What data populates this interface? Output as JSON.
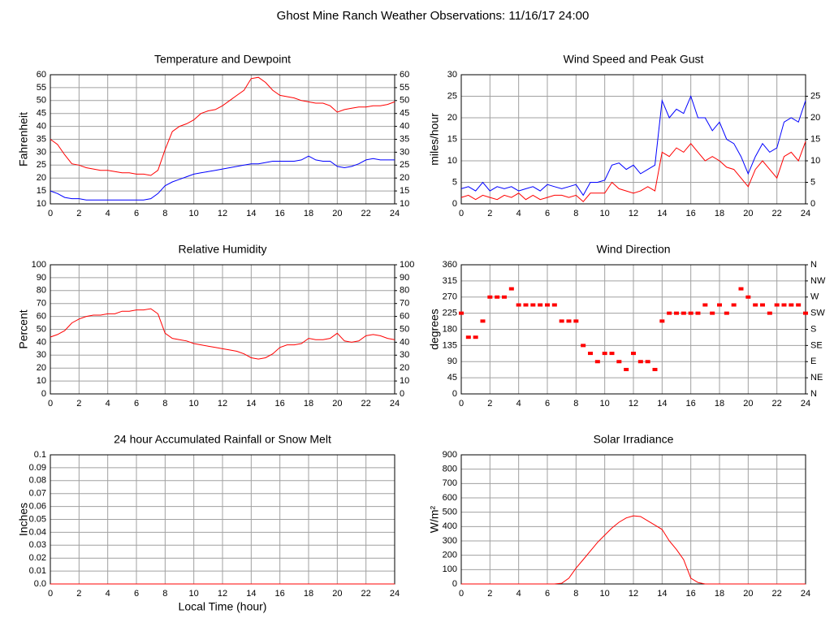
{
  "title": "Ghost Mine Ranch Weather Observations: 11/16/17 24:00",
  "chart_data": [
    {
      "type": "line",
      "title": "Temperature and Dewpoint",
      "ylabel": "Fahrenheit",
      "grid": true,
      "xlim": [
        0,
        24
      ],
      "xticks": [
        0,
        2,
        4,
        6,
        8,
        10,
        12,
        14,
        16,
        18,
        20,
        22,
        24
      ],
      "ylim": [
        10,
        60
      ],
      "yticks": [
        10,
        15,
        20,
        25,
        30,
        35,
        40,
        45,
        50,
        55,
        60
      ],
      "y2lim": [
        10,
        60
      ],
      "y2ticks": [
        10,
        15,
        20,
        25,
        30,
        35,
        40,
        45,
        50,
        55,
        60
      ],
      "x": [
        0,
        0.5,
        1,
        1.5,
        2,
        2.5,
        3,
        3.5,
        4,
        4.5,
        5,
        5.5,
        6,
        6.5,
        7,
        7.5,
        8,
        8.5,
        9,
        9.5,
        10,
        10.5,
        11,
        11.5,
        12,
        12.5,
        13,
        13.5,
        14,
        14.5,
        15,
        15.5,
        16,
        16.5,
        17,
        17.5,
        18,
        18.5,
        19,
        19.5,
        20,
        20.5,
        21,
        21.5,
        22,
        22.5,
        23,
        23.5,
        24
      ],
      "series": [
        {
          "color": "#ff0000",
          "values": [
            35,
            33,
            29,
            25.5,
            25,
            24,
            23.5,
            23,
            23,
            22.5,
            22,
            22,
            21.5,
            21.5,
            21,
            23,
            31,
            38,
            40,
            41,
            42.5,
            45,
            46,
            46.5,
            48,
            50,
            52,
            54,
            58.5,
            59,
            57,
            54,
            52,
            51.5,
            51,
            50,
            49.5,
            49,
            49,
            48,
            45.5,
            46.5,
            47,
            47.5,
            47.5,
            48,
            48,
            48.5,
            49.5
          ]
        },
        {
          "color": "#0000ff",
          "values": [
            15,
            14,
            12.5,
            12,
            12,
            11.5,
            11.5,
            11.5,
            11.5,
            11.5,
            11.5,
            11.5,
            11.5,
            11.5,
            12,
            14,
            17,
            18.5,
            19.5,
            20.5,
            21.5,
            22,
            22.5,
            23,
            23.5,
            24,
            24.5,
            25,
            25.5,
            25.5,
            26,
            26.5,
            26.5,
            26.5,
            26.5,
            27,
            28.5,
            27,
            26.5,
            26.5,
            24.5,
            24,
            24.5,
            25.5,
            27,
            27.5,
            27,
            27,
            27
          ]
        }
      ]
    },
    {
      "type": "line",
      "title": "Wind Speed and Peak Gust",
      "ylabel": "miles/hour",
      "grid": true,
      "xlim": [
        0,
        24
      ],
      "xticks": [
        0,
        2,
        4,
        6,
        8,
        10,
        12,
        14,
        16,
        18,
        20,
        22,
        24
      ],
      "ylim": [
        0,
        30
      ],
      "yticks": [
        0,
        5,
        10,
        15,
        20,
        25,
        30
      ],
      "y2lim": [
        0,
        30
      ],
      "y2ticks": [
        0,
        5,
        10,
        15,
        20,
        25
      ],
      "x": [
        0,
        0.5,
        1,
        1.5,
        2,
        2.5,
        3,
        3.5,
        4,
        4.5,
        5,
        5.5,
        6,
        6.5,
        7,
        7.5,
        8,
        8.5,
        9,
        9.5,
        10,
        10.5,
        11,
        11.5,
        12,
        12.5,
        13,
        13.5,
        14,
        14.5,
        15,
        15.5,
        16,
        16.5,
        17,
        17.5,
        18,
        18.5,
        19,
        19.5,
        20,
        20.5,
        21,
        21.5,
        22,
        22.5,
        23,
        23.5,
        24
      ],
      "series": [
        {
          "color": "#0000ff",
          "values": [
            3.5,
            4,
            3,
            5,
            3,
            4,
            3.5,
            4,
            3,
            3.5,
            4,
            3,
            4.5,
            4,
            3.5,
            4,
            4.5,
            2,
            5,
            5,
            5.5,
            9,
            9.5,
            8,
            9,
            7,
            8,
            9,
            24,
            20,
            22,
            21,
            25,
            20,
            20,
            17,
            19,
            15,
            14,
            11,
            7,
            11,
            14,
            12,
            13,
            19,
            20,
            19,
            24
          ]
        },
        {
          "color": "#ff0000",
          "values": [
            1.5,
            2,
            1,
            2,
            1.5,
            1,
            2,
            1.5,
            2.5,
            1,
            2,
            1,
            1.5,
            2,
            2,
            1.5,
            2,
            0.5,
            2.5,
            2.5,
            2.5,
            5,
            3.5,
            3,
            2.5,
            3,
            4,
            3,
            12,
            11,
            13,
            12,
            14,
            12,
            10,
            11,
            10,
            8.5,
            8,
            6,
            4,
            8,
            10,
            8,
            6,
            11,
            12,
            10,
            14.5
          ]
        }
      ]
    },
    {
      "type": "line",
      "title": "Relative Humidity",
      "ylabel": "Percent",
      "grid": true,
      "xlim": [
        0,
        24
      ],
      "xticks": [
        0,
        2,
        4,
        6,
        8,
        10,
        12,
        14,
        16,
        18,
        20,
        22,
        24
      ],
      "ylim": [
        0,
        100
      ],
      "yticks": [
        0,
        10,
        20,
        30,
        40,
        50,
        60,
        70,
        80,
        90,
        100
      ],
      "y2lim": [
        0,
        100
      ],
      "y2ticks": [
        0,
        10,
        20,
        30,
        40,
        50,
        60,
        70,
        80,
        90,
        100
      ],
      "x": [
        0,
        0.5,
        1,
        1.5,
        2,
        2.5,
        3,
        3.5,
        4,
        4.5,
        5,
        5.5,
        6,
        6.5,
        7,
        7.5,
        8,
        8.5,
        9,
        9.5,
        10,
        10.5,
        11,
        11.5,
        12,
        12.5,
        13,
        13.5,
        14,
        14.5,
        15,
        15.5,
        16,
        16.5,
        17,
        17.5,
        18,
        18.5,
        19,
        19.5,
        20,
        20.5,
        21,
        21.5,
        22,
        22.5,
        23,
        23.5,
        24
      ],
      "series": [
        {
          "color": "#ff0000",
          "values": [
            44,
            46,
            49,
            55,
            58,
            60,
            61,
            61,
            62,
            62,
            64,
            64,
            65,
            65,
            66,
            62,
            47,
            43,
            42,
            41,
            39,
            38,
            37,
            36,
            35,
            34,
            33,
            31,
            28,
            27,
            28,
            31,
            36,
            38,
            38,
            39,
            43,
            42,
            42,
            43,
            47,
            41,
            40,
            41,
            45,
            46,
            45,
            43,
            42
          ]
        }
      ]
    },
    {
      "type": "scatter",
      "title": "Wind Direction",
      "ylabel": "degrees",
      "grid": true,
      "xlim": [
        0,
        24
      ],
      "xticks": [
        0,
        2,
        4,
        6,
        8,
        10,
        12,
        14,
        16,
        18,
        20,
        22,
        24
      ],
      "ylim": [
        0,
        360
      ],
      "yticks": [
        0,
        45,
        90,
        135,
        180,
        225,
        270,
        315,
        360
      ],
      "y2lim": [
        0,
        360
      ],
      "y2ticks": [
        {
          "value": 0,
          "label": "N"
        },
        {
          "value": 45,
          "label": "NE"
        },
        {
          "value": 90,
          "label": "E"
        },
        {
          "value": 135,
          "label": "SE"
        },
        {
          "value": 180,
          "label": "S"
        },
        {
          "value": 225,
          "label": "SW"
        },
        {
          "value": 270,
          "label": "W"
        },
        {
          "value": 315,
          "label": "NW"
        },
        {
          "value": 360,
          "label": "N"
        }
      ],
      "x": [
        0,
        0.5,
        1,
        1.5,
        2,
        2.5,
        3,
        3.5,
        4,
        4.5,
        5,
        5.5,
        6,
        6.5,
        7,
        7.5,
        8,
        8.5,
        9,
        9.5,
        10,
        10.5,
        11,
        11.5,
        12,
        12.5,
        13,
        13.5,
        14,
        14.5,
        15,
        15.5,
        16,
        16.5,
        17,
        17.5,
        18,
        18.5,
        19,
        19.5,
        20,
        20.5,
        21,
        21.5,
        22,
        22.5,
        23,
        23.5,
        24
      ],
      "series": [
        {
          "color": "#ff0000",
          "values": [
            225,
            158,
            158,
            203,
            270,
            270,
            270,
            293,
            248,
            248,
            248,
            248,
            248,
            248,
            203,
            203,
            203,
            135,
            113,
            90,
            113,
            113,
            90,
            68,
            113,
            90,
            90,
            68,
            203,
            225,
            225,
            225,
            225,
            225,
            248,
            225,
            248,
            225,
            248,
            293,
            270,
            248,
            248,
            225,
            248,
            248,
            248,
            248,
            225
          ]
        }
      ]
    },
    {
      "type": "line",
      "title": "24 hour Accumulated Rainfall or Snow Melt",
      "ylabel": "Inches",
      "xlabel": "Local Time (hour)",
      "grid": true,
      "xlim": [
        0,
        24
      ],
      "xticks": [
        0,
        2,
        4,
        6,
        8,
        10,
        12,
        14,
        16,
        18,
        20,
        22,
        24
      ],
      "ylim": [
        0,
        0.1
      ],
      "yticks": [
        {
          "value": 0,
          "label": "0.0"
        },
        0.01,
        0.02,
        0.03,
        0.04,
        0.05,
        0.06,
        0.07,
        0.08,
        0.09,
        0.1
      ],
      "x": [
        0,
        24
      ],
      "series": [
        {
          "color": "#ff0000",
          "values": [
            0,
            0
          ]
        }
      ]
    },
    {
      "type": "line",
      "title": "Solar Irradiance",
      "ylabel": "W/m²",
      "grid": true,
      "xlim": [
        0,
        24
      ],
      "xticks": [
        0,
        2,
        4,
        6,
        8,
        10,
        12,
        14,
        16,
        18,
        20,
        22,
        24
      ],
      "ylim": [
        0,
        900
      ],
      "yticks": [
        0,
        100,
        200,
        300,
        400,
        500,
        600,
        700,
        800,
        900
      ],
      "x": [
        0,
        0.5,
        1,
        1.5,
        2,
        2.5,
        3,
        3.5,
        4,
        4.5,
        5,
        5.5,
        6,
        6.5,
        7,
        7.5,
        8,
        8.5,
        9,
        9.5,
        10,
        10.5,
        11,
        11.5,
        12,
        12.5,
        13,
        13.5,
        14,
        14.5,
        15,
        15.5,
        16,
        16.5,
        17,
        17.5,
        18,
        18.5,
        19,
        19.5,
        20,
        20.5,
        21,
        21.5,
        22,
        22.5,
        23,
        23.5,
        24
      ],
      "series": [
        {
          "color": "#ff0000",
          "values": [
            0,
            0,
            0,
            0,
            0,
            0,
            0,
            0,
            0,
            0,
            0,
            0,
            0,
            0,
            5,
            40,
            110,
            170,
            230,
            290,
            340,
            390,
            430,
            460,
            475,
            470,
            440,
            410,
            380,
            300,
            240,
            170,
            40,
            10,
            0,
            0,
            0,
            0,
            0,
            0,
            0,
            0,
            0,
            0,
            0,
            0,
            0,
            0,
            0
          ]
        }
      ]
    }
  ]
}
